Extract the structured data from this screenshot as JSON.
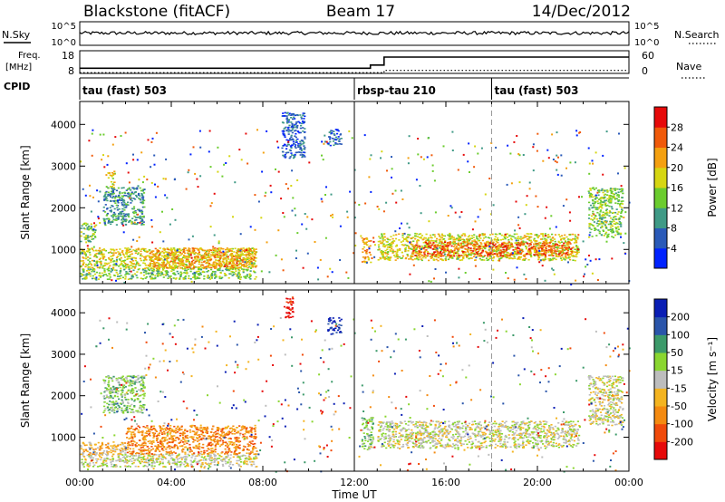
{
  "header": {
    "station": "Blackstone (fitACF)",
    "beam": "Beam 17",
    "date": "14/Dec/2012"
  },
  "noise_panel": {
    "left_label": "N.Sky",
    "right_label": "N.Search",
    "tick_top": "10^5",
    "tick_bottom": "10^0",
    "sky_level": 2.6
  },
  "freq_panel": {
    "left_label_1": "Freq.",
    "left_label_2": "[MHz]",
    "left_tick_top": "18",
    "left_tick_bottom": "8",
    "right_label": "Nave",
    "right_tick_top": "60",
    "right_tick_bottom": "0",
    "freq_segments": [
      {
        "start": 0.0,
        "end": 12.7,
        "mhz": 10.3
      },
      {
        "start": 12.7,
        "end": 13.3,
        "mhz": 11.7
      },
      {
        "start": 13.3,
        "end": 24.0,
        "mhz": 15.2
      }
    ],
    "nave_segments": [
      {
        "start": 0.0,
        "end": 13.3,
        "value": 2
      },
      {
        "start": 13.3,
        "end": 24.0,
        "value": 8
      }
    ]
  },
  "cpid": {
    "label": "CPID",
    "segments": [
      {
        "start": 0.0,
        "name": "tau (fast) 503"
      },
      {
        "start": 12.0,
        "name": "rbsp-tau 210"
      },
      {
        "start": 18.0,
        "name": "tau (fast) 503"
      }
    ]
  },
  "colorbar_power": {
    "label": "Power [dB]",
    "ticks": [
      "4",
      "8",
      "12",
      "16",
      "20",
      "24",
      "28"
    ],
    "colors": [
      "#0022ff",
      "#2a5ab8",
      "#3f9a86",
      "#6bcc2e",
      "#d6d612",
      "#f4a010",
      "#f05a0a",
      "#e60a0a"
    ]
  },
  "colorbar_velocity": {
    "label": "Velocity [m s⁻¹]",
    "ticks": [
      "-200",
      "-100",
      "-50",
      "-15",
      "15",
      "50",
      "100",
      "200"
    ],
    "colors": [
      "#e60a0a",
      "#f04a0a",
      "#f48a10",
      "#f4b420",
      "#bdbdbd",
      "#8ad630",
      "#3c9a6a",
      "#2a55aa",
      "#0a1eb4"
    ]
  },
  "chart_data": [
    {
      "type": "heatmap",
      "title": "",
      "xlabel": "",
      "ylabel": "Slant Range [km]",
      "xlim": [
        0,
        24
      ],
      "ylim": [
        180,
        4550
      ],
      "y_ticks": [
        "1000",
        "2000",
        "3000",
        "4000"
      ],
      "y_tick_values": [
        1000,
        2000,
        3000,
        4000
      ],
      "colorbar": "Power [dB]",
      "regions": [
        {
          "t0": 0.0,
          "t1": 7.7,
          "r0": 300,
          "r1": 560,
          "level": 3
        },
        {
          "t0": 0.0,
          "t1": 7.7,
          "r0": 560,
          "r1": 1050,
          "level": 4
        },
        {
          "t0": 3.0,
          "t1": 7.7,
          "r0": 560,
          "r1": 1050,
          "level": 5
        },
        {
          "t0": 0.0,
          "t1": 0.7,
          "r0": 1200,
          "r1": 1650,
          "level": 3
        },
        {
          "t0": 1.0,
          "t1": 2.8,
          "r0": 1600,
          "r1": 2500,
          "level": 2
        },
        {
          "t0": 1.2,
          "t1": 1.5,
          "r0": 2500,
          "r1": 2900,
          "level": 4
        },
        {
          "t0": 12.3,
          "t1": 12.7,
          "r0": 700,
          "r1": 1300,
          "level": 5
        },
        {
          "t0": 13.0,
          "t1": 21.8,
          "r0": 750,
          "r1": 1400,
          "level": 4
        },
        {
          "t0": 14.5,
          "t1": 21.5,
          "r0": 850,
          "r1": 1200,
          "level": 6
        },
        {
          "t0": 22.2,
          "t1": 23.7,
          "r0": 1300,
          "r1": 2500,
          "level": 3
        },
        {
          "t0": 8.8,
          "t1": 9.8,
          "r0": 3200,
          "r1": 4300,
          "level": 1
        },
        {
          "t0": 10.8,
          "t1": 11.4,
          "r0": 3500,
          "r1": 3900,
          "level": 1
        }
      ]
    },
    {
      "type": "heatmap",
      "title": "",
      "xlabel": "Time UT",
      "ylabel": "Slant Range [km]",
      "xlim": [
        0,
        24
      ],
      "ylim": [
        180,
        4550
      ],
      "x_ticks": [
        "00:00",
        "04:00",
        "08:00",
        "12:00",
        "16:00",
        "20:00",
        "00:00"
      ],
      "x_tick_values": [
        0,
        4,
        8,
        12,
        16,
        20,
        24
      ],
      "y_ticks": [
        "1000",
        "2000",
        "3000",
        "4000"
      ],
      "y_tick_values": [
        1000,
        2000,
        3000,
        4000
      ],
      "colorbar": "Velocity [m s⁻¹]",
      "regions": [
        {
          "t0": 0.0,
          "t1": 7.7,
          "r0": 300,
          "r1": 620,
          "level": 4
        },
        {
          "t0": 2.0,
          "t1": 7.7,
          "r0": 600,
          "r1": 1300,
          "level": 2
        },
        {
          "t0": 0.0,
          "t1": 2.0,
          "r0": 600,
          "r1": 900,
          "level": 3
        },
        {
          "t0": 1.0,
          "t1": 2.8,
          "r0": 1600,
          "r1": 2500,
          "level": 5
        },
        {
          "t0": 12.3,
          "t1": 12.8,
          "r0": 700,
          "r1": 1500,
          "level": 5
        },
        {
          "t0": 13.0,
          "t1": 21.8,
          "r0": 750,
          "r1": 1400,
          "level": 4
        },
        {
          "t0": 22.2,
          "t1": 23.7,
          "r0": 1300,
          "r1": 2500,
          "level": 4
        },
        {
          "t0": 8.9,
          "t1": 9.3,
          "r0": 3900,
          "r1": 4400,
          "level": 0
        },
        {
          "t0": 10.8,
          "t1": 11.4,
          "r0": 3500,
          "r1": 3900,
          "level": 8
        }
      ]
    }
  ]
}
